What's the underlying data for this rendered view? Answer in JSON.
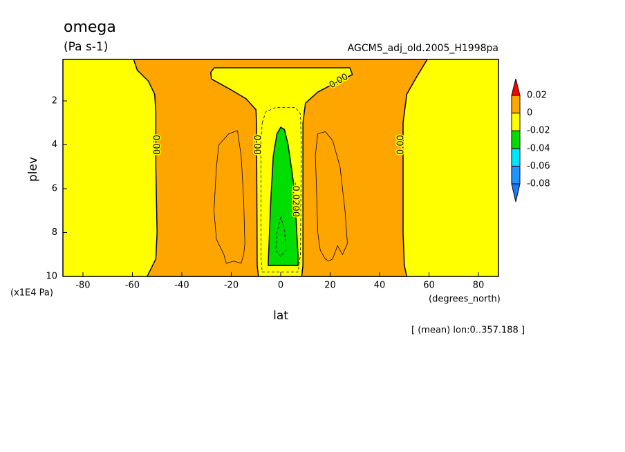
{
  "chart_data": {
    "type": "contour",
    "title": "omega",
    "subtitle": "(Pa s-1)",
    "dataset": "AGCM5_adj_old.2005_H1998pa",
    "x_label": "lat",
    "x_unit": "(degrees_north)",
    "y_label": "plev",
    "y_unit": "(x1E4 Pa)",
    "note": "[ (mean) lon:0..357.188 ]",
    "xlim": [
      -88.1,
      88.1
    ],
    "ylim": [
      10,
      0.11
    ],
    "xticks": [
      -80,
      -60,
      -40,
      -20,
      0,
      20,
      40,
      60,
      80
    ],
    "yticks": [
      2,
      4,
      6,
      8,
      10
    ],
    "background": "#ffff00",
    "regions": [
      {
        "color": "#ffa500",
        "x": [
          -59.5,
          -58,
          -53.5,
          -51,
          -50.5,
          -50.5,
          -50,
          -50.5,
          -54,
          51,
          50,
          49.5,
          49.5,
          51,
          55,
          59.3
        ],
        "y": [
          0.11,
          0.6,
          1.1,
          1.7,
          2.5,
          5,
          8,
          9.2,
          10,
          10,
          9.5,
          8,
          3,
          1.7,
          0.9,
          0.11
        ]
      },
      {
        "color": "#ffff00",
        "x": [
          -26.9,
          28,
          29,
          20,
          15,
          10,
          9,
          9,
          8.5,
          -9,
          -9.5,
          -9.8,
          -10,
          -14,
          -20,
          -28,
          -28.3
        ],
        "y": [
          0.49,
          0.49,
          0.8,
          1.3,
          1.6,
          2.1,
          3,
          9.5,
          10,
          10,
          9.5,
          3,
          2.4,
          1.9,
          1.5,
          1.0,
          0.7
        ]
      },
      {
        "color": "#00dd00",
        "x": [
          0,
          -1.5,
          -3,
          -4,
          -5,
          -5,
          7,
          7,
          5.5,
          3,
          1.5
        ],
        "y": [
          3.2,
          3.5,
          4.5,
          6.5,
          9.3,
          9.5,
          9.5,
          9,
          6,
          4,
          3.3
        ]
      }
    ],
    "contours": [
      {
        "dashed": false,
        "x": [
          -17.5,
          -16,
          -15,
          -14.5,
          -15,
          -16,
          -19,
          -22,
          -23,
          -26,
          -27,
          -26,
          -25,
          -21,
          -17.5
        ],
        "y": [
          3.35,
          4.5,
          6.5,
          8.5,
          9,
          9.4,
          9.3,
          9.4,
          9,
          8.3,
          7,
          5,
          4,
          3.5,
          3.35
        ]
      },
      {
        "dashed": false,
        "x": [
          15,
          18,
          21,
          24,
          26,
          27,
          25,
          23,
          21,
          19.5,
          18,
          16,
          15,
          14.5,
          14,
          15
        ],
        "y": [
          3.5,
          3.4,
          3.8,
          5,
          7,
          8.5,
          9,
          8.6,
          9.2,
          9.3,
          9.2,
          8.8,
          8,
          6,
          4.5,
          3.5
        ]
      },
      {
        "dashed": true,
        "x": [
          -7.5,
          -6,
          -2,
          6,
          8,
          8.3,
          8,
          7,
          -7.5,
          -8,
          -8,
          -7.5
        ],
        "y": [
          3,
          2.5,
          2.3,
          2.3,
          2.6,
          4,
          9,
          9.8,
          9.8,
          9,
          4,
          3
        ]
      },
      {
        "dashed": true,
        "x": [
          0,
          -1.5,
          -2,
          0,
          2,
          1.5,
          0
        ],
        "y": [
          7.3,
          8,
          8.8,
          9.1,
          8.8,
          7.8,
          7.3
        ]
      }
    ],
    "contour_labels": [
      {
        "text": "0.00",
        "x": -50.6,
        "y": 4,
        "angle": 90
      },
      {
        "text": "0.00",
        "x": -9.8,
        "y": 4,
        "angle": 90
      },
      {
        "text": "0.00",
        "x": 48.7,
        "y": 4,
        "angle": -90
      },
      {
        "text": "0.00",
        "x": 23.5,
        "y": 1.1,
        "angle": -30
      },
      {
        "text": "-0.0200",
        "x": 5.9,
        "y": 6.5,
        "angle": 90
      }
    ],
    "colorbar": {
      "levels": [
        -0.08,
        -0.06,
        -0.04,
        -0.02,
        0,
        0.02
      ],
      "colors": [
        "#1e78ff",
        "#1e96ff",
        "#00e6ff",
        "#00dd00",
        "#ffff00",
        "#ffa500",
        "#ff0000"
      ]
    }
  }
}
